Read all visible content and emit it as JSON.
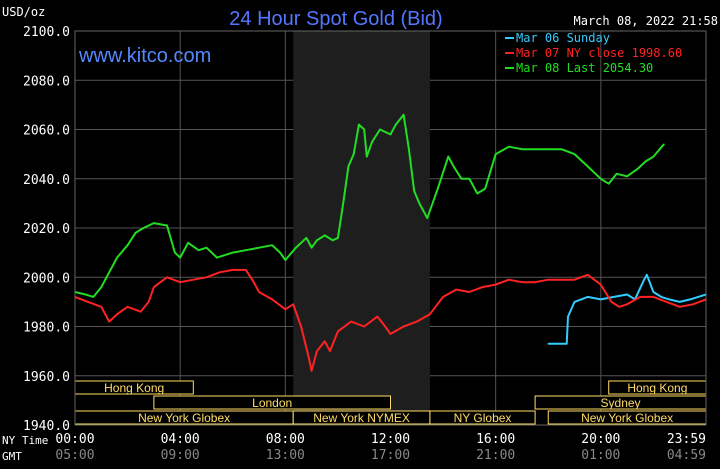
{
  "chart_data": {
    "type": "line",
    "title": "24 Hour Spot Gold (Bid)",
    "unit_label": "USD/oz",
    "date_label": "March 08, 2022 21:58",
    "watermark": "www.kitco.com",
    "ylim": [
      1940,
      2100
    ],
    "y_ticks": [
      {
        "value": 2100,
        "label": "2100.0"
      },
      {
        "value": 2080,
        "label": "2080.0"
      },
      {
        "value": 2060,
        "label": "2060.0"
      },
      {
        "value": 2040,
        "label": "2040.0"
      },
      {
        "value": 2020,
        "label": "2020.0"
      },
      {
        "value": 2000,
        "label": "2000.0"
      },
      {
        "value": 1980,
        "label": "1980.0"
      },
      {
        "value": 1960,
        "label": "1960.0"
      },
      {
        "value": 1940,
        "label": "1940.0"
      }
    ],
    "x_axis": {
      "row1_label": "NY Time",
      "row2_label": "GMT",
      "ticks": [
        {
          "hour": 0,
          "ny": "00:00",
          "gmt": "05:00"
        },
        {
          "hour": 4,
          "ny": "04:00",
          "gmt": "09:00"
        },
        {
          "hour": 8,
          "ny": "08:00",
          "gmt": "13:00"
        },
        {
          "hour": 12,
          "ny": "12:00",
          "gmt": "17:00"
        },
        {
          "hour": 16,
          "ny": "16:00",
          "gmt": "21:00"
        },
        {
          "hour": 20,
          "ny": "20:00",
          "gmt": "01:00"
        },
        {
          "hour": 24,
          "ny": "23:59",
          "gmt": "04:59"
        }
      ]
    },
    "shaded_session": {
      "start_hour": 8.3,
      "end_hour": 13.5
    },
    "series": [
      {
        "name": "Mar 06 Sunday",
        "color": "#33ccff",
        "points": [
          [
            18.0,
            1973
          ],
          [
            18.7,
            1973
          ],
          [
            18.75,
            1984
          ],
          [
            19.0,
            1990
          ],
          [
            19.5,
            1992
          ],
          [
            20.0,
            1991
          ],
          [
            20.5,
            1992
          ],
          [
            21.0,
            1993
          ],
          [
            21.3,
            1991
          ],
          [
            21.6,
            1998
          ],
          [
            21.75,
            2001
          ],
          [
            22.0,
            1994
          ],
          [
            22.3,
            1992
          ],
          [
            22.6,
            1991
          ],
          [
            23.0,
            1990
          ],
          [
            23.4,
            1991
          ],
          [
            23.7,
            1992
          ],
          [
            24.0,
            1993
          ]
        ]
      },
      {
        "name": "Mar 07 NY close 1998.60",
        "color": "#ff2222",
        "points": [
          [
            0,
            1992
          ],
          [
            0.5,
            1990
          ],
          [
            1.0,
            1988
          ],
          [
            1.3,
            1982
          ],
          [
            1.6,
            1985
          ],
          [
            2.0,
            1988
          ],
          [
            2.5,
            1986
          ],
          [
            2.8,
            1990
          ],
          [
            3.0,
            1996
          ],
          [
            3.5,
            2000
          ],
          [
            4.0,
            1998
          ],
          [
            4.5,
            1999
          ],
          [
            5.0,
            2000
          ],
          [
            5.5,
            2002
          ],
          [
            6.0,
            2003
          ],
          [
            6.5,
            2003
          ],
          [
            6.8,
            1998
          ],
          [
            7.0,
            1994
          ],
          [
            7.5,
            1991
          ],
          [
            8.0,
            1987
          ],
          [
            8.3,
            1989
          ],
          [
            8.6,
            1980
          ],
          [
            8.9,
            1967
          ],
          [
            9.0,
            1962
          ],
          [
            9.2,
            1970
          ],
          [
            9.5,
            1974
          ],
          [
            9.7,
            1970
          ],
          [
            10.0,
            1978
          ],
          [
            10.5,
            1982
          ],
          [
            11.0,
            1980
          ],
          [
            11.5,
            1984
          ],
          [
            11.8,
            1980
          ],
          [
            12.0,
            1977
          ],
          [
            12.5,
            1980
          ],
          [
            13.0,
            1982
          ],
          [
            13.5,
            1985
          ],
          [
            14.0,
            1992
          ],
          [
            14.5,
            1995
          ],
          [
            15.0,
            1994
          ],
          [
            15.5,
            1996
          ],
          [
            16.0,
            1997
          ],
          [
            16.5,
            1999
          ],
          [
            17.0,
            1998
          ],
          [
            17.5,
            1998
          ],
          [
            18.0,
            1999
          ],
          [
            18.5,
            1999
          ],
          [
            19.0,
            1999
          ],
          [
            19.5,
            2001
          ],
          [
            20.0,
            1997
          ],
          [
            20.4,
            1990
          ],
          [
            20.7,
            1988
          ],
          [
            21.0,
            1989
          ],
          [
            21.5,
            1992
          ],
          [
            22.0,
            1992
          ],
          [
            22.5,
            1990
          ],
          [
            23.0,
            1988
          ],
          [
            23.5,
            1989
          ],
          [
            24.0,
            1991
          ]
        ]
      },
      {
        "name": "Mar 08 Last 2054.30",
        "color": "#22dd22",
        "points": [
          [
            0,
            1994
          ],
          [
            0.4,
            1993
          ],
          [
            0.7,
            1992
          ],
          [
            1.0,
            1996
          ],
          [
            1.3,
            2002
          ],
          [
            1.6,
            2008
          ],
          [
            2.0,
            2013
          ],
          [
            2.3,
            2018
          ],
          [
            2.6,
            2020
          ],
          [
            3.0,
            2022
          ],
          [
            3.5,
            2021
          ],
          [
            3.8,
            2010
          ],
          [
            4.0,
            2008
          ],
          [
            4.3,
            2014
          ],
          [
            4.7,
            2011
          ],
          [
            5.0,
            2012
          ],
          [
            5.4,
            2008
          ],
          [
            6.0,
            2010
          ],
          [
            6.5,
            2011
          ],
          [
            7.0,
            2012
          ],
          [
            7.5,
            2013
          ],
          [
            7.8,
            2010
          ],
          [
            8.0,
            2007
          ],
          [
            8.4,
            2012
          ],
          [
            8.8,
            2016
          ],
          [
            9.0,
            2012
          ],
          [
            9.2,
            2015
          ],
          [
            9.5,
            2017
          ],
          [
            9.8,
            2015
          ],
          [
            10.0,
            2016
          ],
          [
            10.2,
            2030
          ],
          [
            10.4,
            2045
          ],
          [
            10.6,
            2050
          ],
          [
            10.8,
            2062
          ],
          [
            11.0,
            2060
          ],
          [
            11.1,
            2049
          ],
          [
            11.3,
            2055
          ],
          [
            11.6,
            2060
          ],
          [
            12.0,
            2058
          ],
          [
            12.2,
            2062
          ],
          [
            12.5,
            2066
          ],
          [
            12.7,
            2052
          ],
          [
            12.9,
            2035
          ],
          [
            13.1,
            2030
          ],
          [
            13.4,
            2024
          ],
          [
            13.8,
            2036
          ],
          [
            14.2,
            2049
          ],
          [
            14.4,
            2045
          ],
          [
            14.7,
            2040
          ],
          [
            15.0,
            2040
          ],
          [
            15.3,
            2034
          ],
          [
            15.6,
            2036
          ],
          [
            16.0,
            2050
          ],
          [
            16.5,
            2053
          ],
          [
            17.0,
            2052
          ],
          [
            17.5,
            2052
          ],
          [
            18.0,
            2052
          ],
          [
            18.5,
            2052
          ],
          [
            19.0,
            2050
          ],
          [
            19.5,
            2045
          ],
          [
            20.0,
            2040
          ],
          [
            20.3,
            2038
          ],
          [
            20.6,
            2042
          ],
          [
            21.0,
            2041
          ],
          [
            21.4,
            2044
          ],
          [
            21.7,
            2047
          ],
          [
            22.0,
            2049
          ],
          [
            22.4,
            2054
          ]
        ]
      }
    ],
    "sessions": [
      {
        "label": "Hong Kong",
        "row": 1,
        "start": 0,
        "end": 4.5
      },
      {
        "label": "Hong Kong",
        "row": 1,
        "start": 20.3,
        "end": 24
      },
      {
        "label": "London",
        "row": 2,
        "start": 3.0,
        "end": 12.0
      },
      {
        "label": "Sydney",
        "row": 2,
        "start": 17.5,
        "end": 24
      },
      {
        "label": "New York Globex",
        "row": 3,
        "start": 0,
        "end": 8.3
      },
      {
        "label": "New York NYMEX",
        "row": 3,
        "start": 8.3,
        "end": 13.5
      },
      {
        "label": "NY Globex",
        "row": 3,
        "start": 13.5,
        "end": 17.5
      },
      {
        "label": "New York Globex",
        "row": 3,
        "start": 18.0,
        "end": 24
      }
    ]
  }
}
